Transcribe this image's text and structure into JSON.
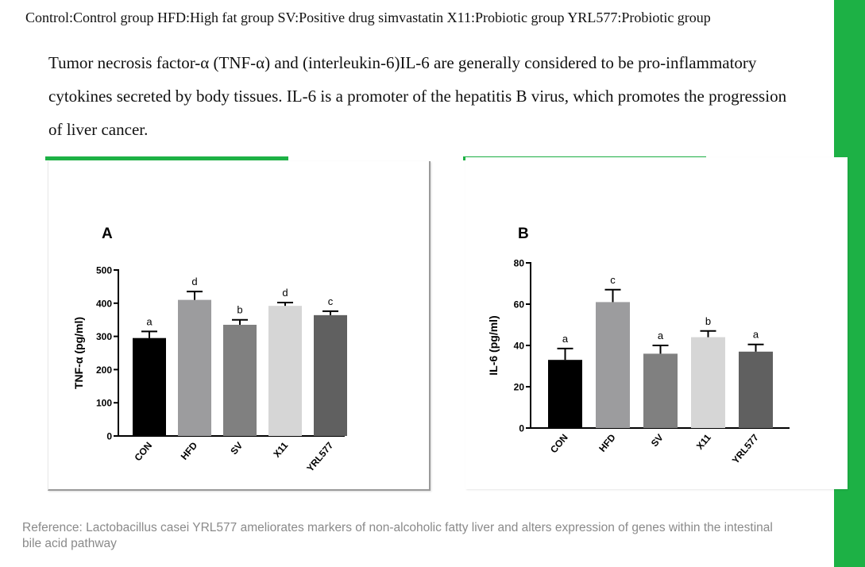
{
  "header": {
    "legend_text": "Control:Control group HFD:High fat group SV:Positive drug simvastatin X11:Probiotic group YRL577:Probiotic group"
  },
  "intro": {
    "text": "Tumor necrosis factor-α (TNF-α) and (interleukin-6)IL-6 are generally considered to be pro-inflammatory cytokines secreted by body tissues. IL-6 is a promoter of the hepatitis B virus, which promotes the progression of liver cancer."
  },
  "reference": {
    "text": "Reference:  Lactobacillus casei YRL577 ameliorates markers of non-alcoholic fatty liver and alters expression of genes within the intestinal bile acid pathway"
  },
  "colors": {
    "accent": "#1db145",
    "bars": [
      "#000000",
      "#9c9c9e",
      "#808080",
      "#d6d6d6",
      "#606060"
    ]
  },
  "chart_data": [
    {
      "type": "bar",
      "panel_label": "A",
      "title": "",
      "xlabel": "",
      "ylabel": "TNF-α (pg/ml)",
      "categories": [
        "CON",
        "HFD",
        "SV",
        "X11",
        "YRL577"
      ],
      "values": [
        295,
        410,
        335,
        392,
        364
      ],
      "errors": [
        20,
        25,
        15,
        10,
        12
      ],
      "significance": [
        "a",
        "d",
        "b",
        "d",
        "c"
      ],
      "ylim": [
        0,
        500
      ],
      "yticks": [
        "0",
        "100",
        "200",
        "300",
        "400",
        "500"
      ],
      "grid": false
    },
    {
      "type": "bar",
      "panel_label": "B",
      "title": "",
      "xlabel": "",
      "ylabel": "IL-6 (pg/ml)",
      "categories": [
        "CON",
        "HFD",
        "SV",
        "X11",
        "YRL577"
      ],
      "values": [
        33,
        61,
        36,
        44,
        37
      ],
      "errors": [
        5.5,
        6,
        4,
        3,
        3.5
      ],
      "significance": [
        "a",
        "c",
        "a",
        "b",
        "a"
      ],
      "ylim": [
        0,
        80
      ],
      "yticks": [
        "0",
        "20",
        "40",
        "60",
        "80"
      ],
      "grid": false
    }
  ]
}
